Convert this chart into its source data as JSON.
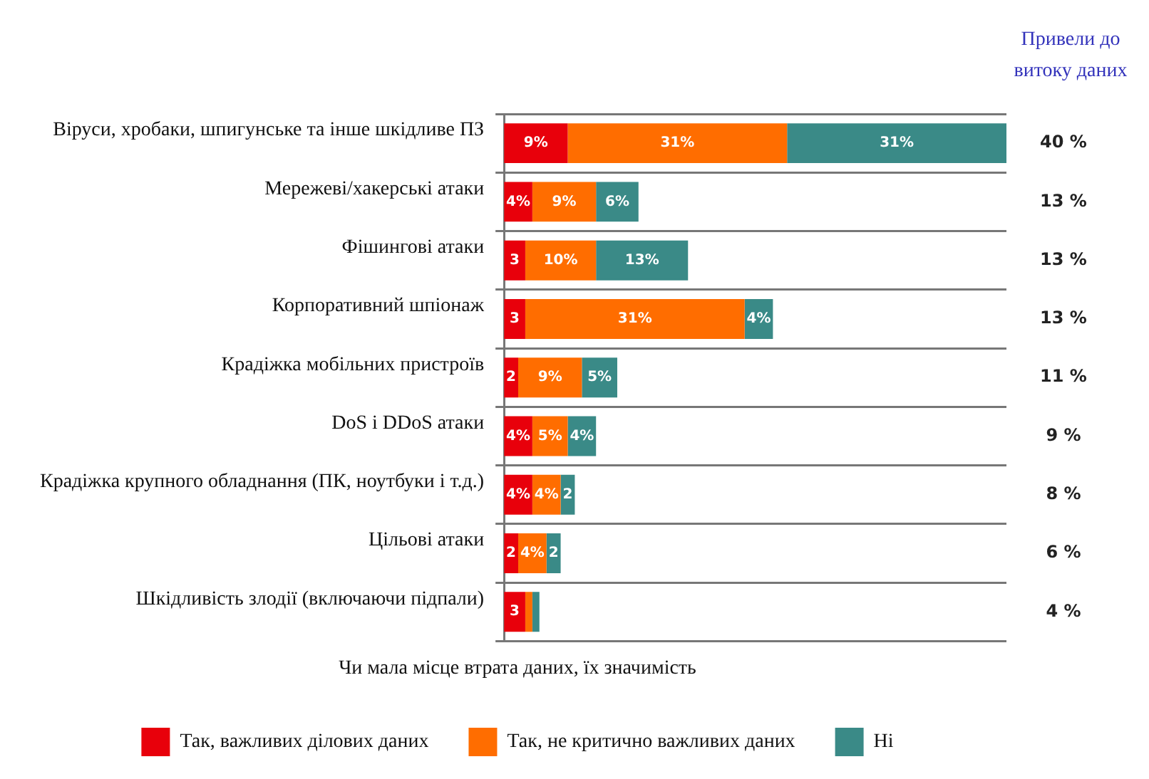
{
  "chart_data": {
    "type": "bar",
    "orientation": "horizontal",
    "stacked": true,
    "categories": [
      "Віруси, хробаки, шпигунське та інше шкідливе ПЗ",
      "Мережеві/хакерські атаки",
      "Фішингові атаки",
      "Корпоративний шпіонаж",
      "Крадіжка мобільних пристроїв",
      "DoS і DDoS атаки",
      "Крадіжка крупного обладнання (ПК, ноутбуки і т.д.)",
      "Цільові атаки",
      "Шкідливість злодії (включаючи підпали)"
    ],
    "series": [
      {
        "name": "Так, важливих ділових даних",
        "color": "#e8000b",
        "values": [
          9,
          4,
          3,
          3,
          2,
          4,
          4,
          2,
          3
        ],
        "value_labels": [
          "9%",
          "4%",
          "3",
          "3",
          "2",
          "4%",
          "4%",
          "2",
          "3"
        ]
      },
      {
        "name": "Так, не критично важливих даних",
        "color": "#ff6d00",
        "values": [
          31,
          9,
          10,
          31,
          9,
          5,
          4,
          4,
          1
        ],
        "value_labels": [
          "31%",
          "9%",
          "10%",
          "31%",
          "9%",
          "5%",
          "4%",
          "4%",
          null
        ]
      },
      {
        "name": "Ні",
        "color": "#3a8a87",
        "values": [
          31,
          6,
          13,
          4,
          5,
          4,
          2,
          2,
          1
        ],
        "value_labels": [
          "31%",
          "6%",
          "13%",
          "4%",
          "5%",
          "4%",
          "2",
          "2",
          null
        ]
      }
    ],
    "annotations": [
      "Привели до витоку даних",
      "40 %",
      "13 %",
      "13 %",
      "13 %",
      "11 %",
      "9 %",
      "8 %",
      "6 %",
      "4 %"
    ],
    "legend_title": "Чи мала місце втрата даних, їх значимість",
    "legend": "bottom",
    "grid": "y",
    "tick_labels": "y"
  }
}
